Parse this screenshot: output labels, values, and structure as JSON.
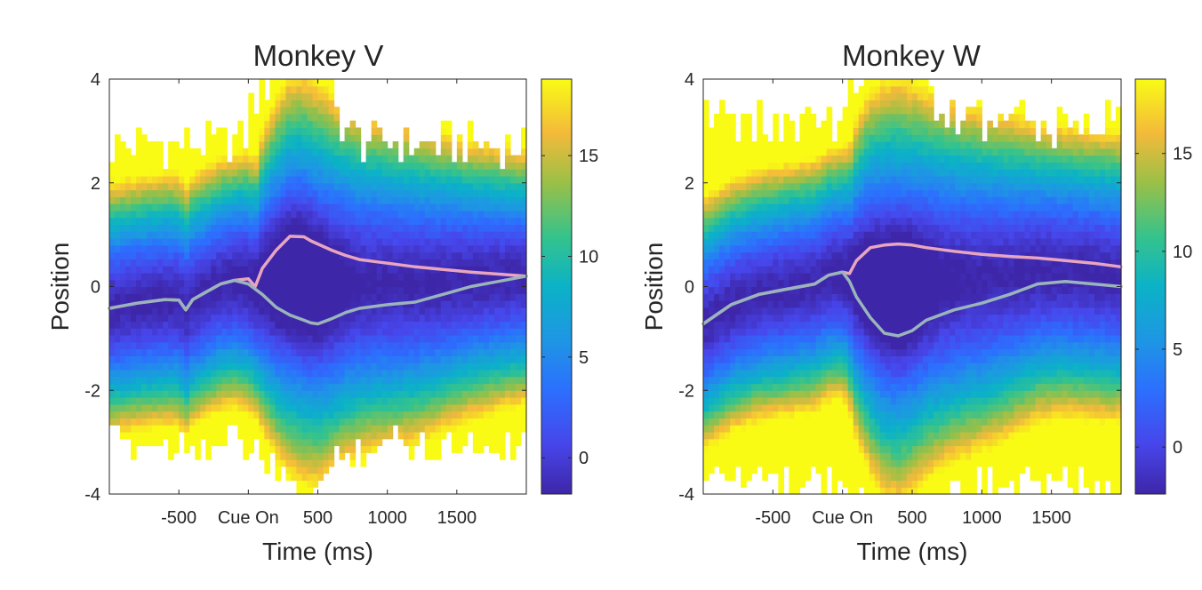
{
  "chart_data": [
    {
      "type": "heatmap",
      "title": "Monkey V",
      "xlabel": "Time (ms)",
      "ylabel": "Position",
      "xlim": [
        -1000,
        2000
      ],
      "ylim": [
        -4,
        4
      ],
      "x_ticks": [
        -500,
        0,
        500,
        1000,
        1500
      ],
      "x_tick_labels": [
        "-500",
        "Cue On",
        "500",
        "1000",
        "1500"
      ],
      "y_ticks": [
        -4,
        -2,
        0,
        2,
        4
      ],
      "y_tick_labels": [
        "-4",
        "-2",
        "0",
        "2",
        "4"
      ],
      "colorbar": {
        "range": [
          -1.8,
          18.8
        ],
        "ticks": [
          0,
          5,
          10,
          15
        ],
        "tick_labels": [
          "0",
          "5",
          "10",
          "15"
        ]
      },
      "grid": false,
      "colormap": "parula",
      "series": [
        {
          "color": "#e8a5c0",
          "x": [
            -1000,
            -800,
            -600,
            -500,
            -450,
            -400,
            -300,
            -200,
            -100,
            0,
            50,
            100,
            200,
            300,
            400,
            450,
            500,
            600,
            700,
            800,
            1000,
            1200,
            1400,
            1600,
            1800,
            2000
          ],
          "y": [
            -0.42,
            -0.32,
            -0.25,
            -0.26,
            -0.45,
            -0.25,
            -0.1,
            0.05,
            0.12,
            0.15,
            0.0,
            0.35,
            0.7,
            0.97,
            0.96,
            0.88,
            0.82,
            0.7,
            0.6,
            0.52,
            0.45,
            0.38,
            0.33,
            0.28,
            0.24,
            0.2
          ]
        },
        {
          "color": "#9ab4bc",
          "x": [
            -1000,
            -800,
            -600,
            -500,
            -450,
            -400,
            -300,
            -200,
            -100,
            0,
            50,
            100,
            200,
            300,
            400,
            450,
            500,
            600,
            700,
            800,
            1000,
            1200,
            1400,
            1600,
            1800,
            2000
          ],
          "y": [
            -0.42,
            -0.32,
            -0.25,
            -0.26,
            -0.45,
            -0.25,
            -0.1,
            0.05,
            0.12,
            0.05,
            -0.05,
            -0.15,
            -0.4,
            -0.55,
            -0.65,
            -0.7,
            -0.72,
            -0.62,
            -0.5,
            -0.42,
            -0.35,
            -0.3,
            -0.15,
            0.0,
            0.1,
            0.2
          ]
        }
      ]
    },
    {
      "type": "heatmap",
      "title": "Monkey W",
      "xlabel": "Time (ms)",
      "ylabel": "Position",
      "xlim": [
        -1000,
        2000
      ],
      "ylim": [
        -4,
        4
      ],
      "x_ticks": [
        -500,
        0,
        500,
        1000,
        1500
      ],
      "x_tick_labels": [
        "-500",
        "Cue On",
        "500",
        "1000",
        "1500"
      ],
      "y_ticks": [
        -4,
        -2,
        0,
        2,
        4
      ],
      "y_tick_labels": [
        "-4",
        "-2",
        "0",
        "2",
        "4"
      ],
      "colorbar": {
        "range": [
          -2.4,
          18.8
        ],
        "ticks": [
          0,
          5,
          10,
          15
        ],
        "tick_labels": [
          "0",
          "5",
          "10",
          "15"
        ]
      },
      "grid": false,
      "colormap": "parula",
      "series": [
        {
          "color": "#e8a5c0",
          "x": [
            -1000,
            -800,
            -600,
            -400,
            -200,
            -100,
            0,
            50,
            100,
            200,
            300,
            400,
            500,
            600,
            800,
            1000,
            1200,
            1400,
            1600,
            1800,
            2000
          ],
          "y": [
            -0.72,
            -0.35,
            -0.15,
            -0.05,
            0.05,
            0.22,
            0.28,
            0.25,
            0.5,
            0.75,
            0.8,
            0.82,
            0.8,
            0.75,
            0.68,
            0.62,
            0.58,
            0.55,
            0.5,
            0.45,
            0.38
          ]
        },
        {
          "color": "#9ab4bc",
          "x": [
            -1000,
            -800,
            -600,
            -400,
            -200,
            -100,
            0,
            50,
            100,
            200,
            300,
            400,
            500,
            600,
            800,
            1000,
            1200,
            1400,
            1600,
            1800,
            2000
          ],
          "y": [
            -0.72,
            -0.35,
            -0.15,
            -0.05,
            0.05,
            0.22,
            0.28,
            0.1,
            -0.2,
            -0.6,
            -0.9,
            -0.95,
            -0.85,
            -0.65,
            -0.45,
            -0.32,
            -0.15,
            0.05,
            0.1,
            0.05,
            0.0
          ]
        }
      ]
    }
  ]
}
